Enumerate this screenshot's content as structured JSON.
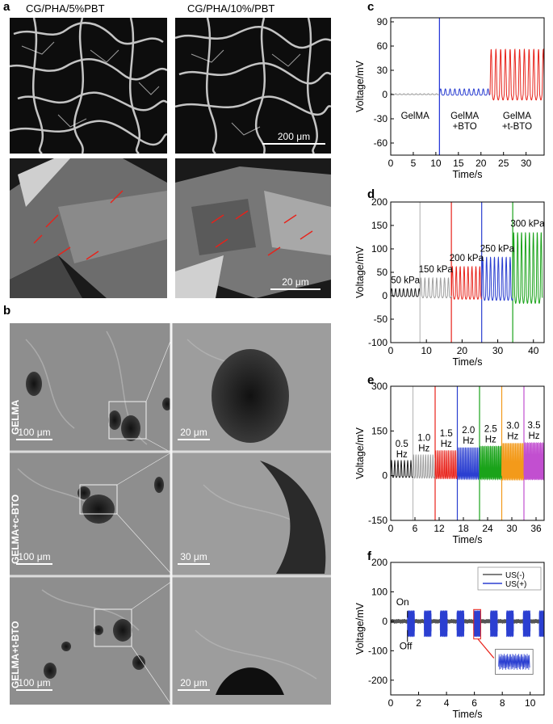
{
  "panel_a": {
    "letter": "a",
    "captions": [
      "CG/PHA/5%PBT",
      "CG/PHA/10%/PBT"
    ],
    "scalebars": [
      "200 μm",
      "20 μm"
    ]
  },
  "panel_b": {
    "letter": "b",
    "row_labels": [
      "GELMA",
      "GELMA+c-BTO",
      "GELMA+t-BTO"
    ],
    "scalebars_left": [
      "100 μm",
      "100 μm",
      "100 μm"
    ],
    "scalebars_right": [
      "20 μm",
      "30 μm",
      "20 μm"
    ]
  },
  "charts": [
    {
      "letter": "c",
      "type": "line",
      "xlabel": "Time/s",
      "ylabel": "Voltage/mV",
      "xlim": [
        0,
        34
      ],
      "ylim": [
        -75,
        95
      ],
      "xticks": [
        0,
        5,
        10,
        15,
        20,
        25,
        30
      ],
      "yticks": [
        -60,
        -30,
        0,
        30,
        60,
        90
      ],
      "segments": [
        {
          "label": "GelMA",
          "x_start": 0,
          "x_end": 10.8,
          "amplitude": 1,
          "period": 0.9,
          "color": "#9a9a9a"
        },
        {
          "label": "GelMA\n+BTO",
          "x_start": 10.8,
          "x_end": 22,
          "amplitude": 7,
          "period": 1.05,
          "color": "#2b3fd1"
        },
        {
          "label": "GelMA\n+t-BTO",
          "x_start": 22,
          "x_end": 34,
          "amplitude": 56,
          "period": 1.05,
          "color": "#e8221a"
        }
      ],
      "dividers": [
        {
          "x": 10.8,
          "color": "#1d2fd6"
        }
      ]
    },
    {
      "letter": "d",
      "type": "line",
      "xlabel": "Time/s",
      "ylabel": "Voltage/mV",
      "xlim": [
        0,
        43
      ],
      "ylim": [
        -100,
        200
      ],
      "xticks": [
        0,
        10,
        20,
        30,
        40
      ],
      "yticks": [
        -100,
        -50,
        0,
        50,
        100,
        150,
        200
      ],
      "segments": [
        {
          "label": "50 kPa",
          "x_start": 0,
          "x_end": 8.2,
          "amplitude": 15,
          "period": 1.1,
          "color": "#222222"
        },
        {
          "label": "150 kPa",
          "x_start": 8.2,
          "x_end": 17,
          "amplitude": 38,
          "period": 1.1,
          "color": "#a0a0a0"
        },
        {
          "label": "200 kPa",
          "x_start": 17,
          "x_end": 25.5,
          "amplitude": 62,
          "period": 1.1,
          "color": "#e8221a"
        },
        {
          "label": "250 kPa",
          "x_start": 25.5,
          "x_end": 34.2,
          "amplitude": 82,
          "period": 1.1,
          "color": "#2b3fd1"
        },
        {
          "label": "300 kPa",
          "x_start": 34.2,
          "x_end": 42.5,
          "amplitude": 135,
          "period": 1.1,
          "color": "#1aa31a"
        }
      ],
      "dividers": [
        {
          "x": 8.2,
          "color": "#bbbbbb"
        },
        {
          "x": 17,
          "color": "#e8221a"
        },
        {
          "x": 25.5,
          "color": "#2b3fd1"
        },
        {
          "x": 34.2,
          "color": "#1aa31a"
        }
      ]
    },
    {
      "letter": "e",
      "type": "line",
      "xlabel": "Time/s",
      "ylabel": "Voltage/mV",
      "xlim": [
        0,
        38
      ],
      "ylim": [
        -150,
        300
      ],
      "xticks": [
        0,
        6,
        12,
        18,
        24,
        30,
        36
      ],
      "yticks": [
        -150,
        0,
        150,
        300
      ],
      "segments": [
        {
          "label": "0.5\nHz",
          "x_start": 0,
          "x_end": 5.5,
          "amplitude": 50,
          "period": 0.8,
          "color": "#222222"
        },
        {
          "label": "1.0\nHz",
          "x_start": 5.5,
          "x_end": 11,
          "amplitude": 70,
          "period": 0.6,
          "color": "#a0a0a0"
        },
        {
          "label": "1.5\nHz",
          "x_start": 11,
          "x_end": 16.5,
          "amplitude": 85,
          "period": 0.45,
          "color": "#e8221a"
        },
        {
          "label": "2.0\nHz",
          "x_start": 16.5,
          "x_end": 22,
          "amplitude": 95,
          "period": 0.38,
          "color": "#2b3fd1"
        },
        {
          "label": "2.5\nHz",
          "x_start": 22,
          "x_end": 27.5,
          "amplitude": 100,
          "period": 0.33,
          "color": "#1aa31a"
        },
        {
          "label": "3.0\nHz",
          "x_start": 27.5,
          "x_end": 33,
          "amplitude": 110,
          "period": 0.3,
          "color": "#f39a1a"
        },
        {
          "label": "3.5\nHz",
          "x_start": 33,
          "x_end": 38,
          "amplitude": 112,
          "period": 0.27,
          "color": "#c24fd0"
        }
      ],
      "dividers": [
        {
          "x": 5.5,
          "color": "#bbbbbb"
        },
        {
          "x": 11,
          "color": "#e8221a"
        },
        {
          "x": 16.5,
          "color": "#2b3fd1"
        },
        {
          "x": 22,
          "color": "#1aa31a"
        },
        {
          "x": 27.5,
          "color": "#f39a1a"
        },
        {
          "x": 33,
          "color": "#c24fd0"
        }
      ]
    },
    {
      "letter": "f",
      "type": "line",
      "xlabel": "Time/s",
      "ylabel": "Voltage/mV",
      "xlim": [
        0,
        11
      ],
      "ylim": [
        -250,
        200
      ],
      "xticks": [
        0,
        2,
        4,
        6,
        8,
        10
      ],
      "yticks": [
        -200,
        -100,
        0,
        100,
        200
      ],
      "legend": [
        {
          "name": "US(-)",
          "color": "#555555"
        },
        {
          "name": "US(+)",
          "color": "#2b3fd1"
        }
      ],
      "legend_position": "top-right",
      "bursts": [
        1.2,
        2.4,
        3.55,
        4.75,
        5.95,
        7.15,
        8.3,
        9.5,
        10.65
      ],
      "burst_width": 0.5,
      "burst_amplitude": 45,
      "baseline_noise": 8,
      "annotations": [
        "On",
        "Off"
      ]
    }
  ]
}
